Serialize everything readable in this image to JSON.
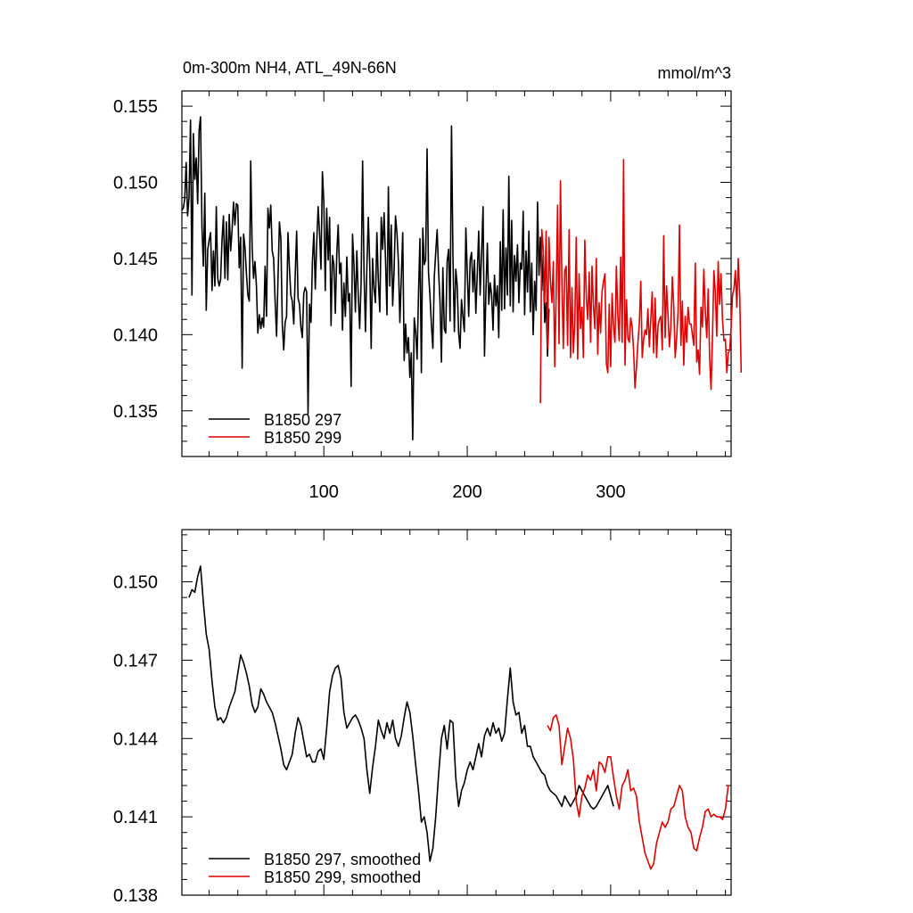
{
  "figure": {
    "title_left": "0m-300m NH4, ATL_49N-66N",
    "title_right": "mmol/m^3"
  },
  "chart_data": [
    {
      "type": "line",
      "name": "raw",
      "xlim": [
        1,
        384
      ],
      "ylim": [
        0.132,
        0.156
      ],
      "yticks": [
        0.135,
        0.14,
        0.145,
        0.15,
        0.155
      ],
      "ytick_labels": [
        "0.135",
        "0.140",
        "0.145",
        "0.150",
        "0.155"
      ],
      "xticks": [
        100,
        200,
        300
      ],
      "xtick_labels": [
        "100",
        "200",
        "300"
      ],
      "legend_position": "bottom-left",
      "series": [
        {
          "name": "B1850 297",
          "color": "#000000",
          "x_start": 1,
          "values": [
            0.1482,
            0.1483,
            0.1489,
            0.1513,
            0.1478,
            0.149,
            0.1541,
            0.1426,
            0.1532,
            0.1502,
            0.1516,
            0.1486,
            0.1534,
            0.1543,
            0.1471,
            0.1445,
            0.1493,
            0.1416,
            0.1456,
            0.1462,
            0.1467,
            0.1429,
            0.1455,
            0.1432,
            0.1484,
            0.1437,
            0.1432,
            0.1436,
            0.1462,
            0.1478,
            0.1437,
            0.1474,
            0.1436,
            0.1479,
            0.1455,
            0.1469,
            0.1487,
            0.1472,
            0.1486,
            0.1485,
            0.1444,
            0.1464,
            0.1378,
            0.1466,
            0.1457,
            0.144,
            0.1426,
            0.1422,
            0.1514,
            0.1457,
            0.1437,
            0.1448,
            0.1432,
            0.1401,
            0.1413,
            0.1404,
            0.1411,
            0.1405,
            0.1445,
            0.1412,
            0.1483,
            0.147,
            0.1485,
            0.1455,
            0.145,
            0.1423,
            0.1399,
            0.1437,
            0.1474,
            0.1463,
            0.1407,
            0.139,
            0.1408,
            0.1412,
            0.1467,
            0.1444,
            0.1426,
            0.1422,
            0.1407,
            0.1439,
            0.1468,
            0.1424,
            0.142,
            0.1405,
            0.1398,
            0.1427,
            0.1431,
            0.1428,
            0.1348,
            0.142,
            0.1408,
            0.1448,
            0.1467,
            0.143,
            0.146,
            0.1484,
            0.1467,
            0.1443,
            0.1507,
            0.1487,
            0.1429,
            0.1483,
            0.1449,
            0.1477,
            0.1406,
            0.1452,
            0.1446,
            0.1414,
            0.1453,
            0.1472,
            0.144,
            0.1447,
            0.1403,
            0.1434,
            0.1412,
            0.1451,
            0.1422,
            0.1427,
            0.1366,
            0.1466,
            0.1446,
            0.1415,
            0.1455,
            0.1426,
            0.1404,
            0.1434,
            0.1514,
            0.144,
            0.1402,
            0.1445,
            0.1477,
            0.1446,
            0.1391,
            0.145,
            0.143,
            0.1421,
            0.1467,
            0.1436,
            0.1415,
            0.1477,
            0.1456,
            0.148,
            0.1449,
            0.1413,
            0.1497,
            0.1432,
            0.1472,
            0.1419,
            0.1442,
            0.1478,
            0.1466,
            0.1447,
            0.1408,
            0.1438,
            0.1467,
            0.1383,
            0.1407,
            0.1388,
            0.1398,
            0.1372,
            0.1388,
            0.1331,
            0.1411,
            0.1402,
            0.1384,
            0.1427,
            0.1463,
            0.1375,
            0.147,
            0.1446,
            0.1449,
            0.1522,
            0.1441,
            0.1426,
            0.1406,
            0.1391,
            0.1438,
            0.1454,
            0.1469,
            0.1442,
            0.1422,
            0.1382,
            0.1444,
            0.1404,
            0.1401,
            0.1448,
            0.1456,
            0.1409,
            0.1537,
            0.1452,
            0.1402,
            0.1443,
            0.1432,
            0.1401,
            0.1391,
            0.1423,
            0.1412,
            0.1402,
            0.147,
            0.1441,
            0.1412,
            0.1449,
            0.1454,
            0.1428,
            0.1449,
            0.1414,
            0.144,
            0.1468,
            0.1426,
            0.1453,
            0.1484,
            0.1386,
            0.1428,
            0.146,
            0.142,
            0.1434,
            0.1426,
            0.1403,
            0.1439,
            0.1419,
            0.1432,
            0.1398,
            0.1461,
            0.1416,
            0.1482,
            0.1417,
            0.1457,
            0.1426,
            0.1504,
            0.1419,
            0.1475,
            0.1415,
            0.1452,
            0.1435,
            0.1459,
            0.1421,
            0.1447,
            0.1443,
            0.1481,
            0.1413,
            0.1455,
            0.1428,
            0.1468,
            0.1415,
            0.1447,
            0.14,
            0.1435,
            0.1416,
            0.1487,
            0.1439,
            0.1464,
            0.1429,
            0.1452,
            0.1408,
            0.1421,
            0.1386,
            0.1417
          ]
        },
        {
          "name": "B1850 299",
          "color": "#e00000",
          "x_start": 251,
          "values": [
            0.1355,
            0.1469,
            0.1456,
            0.1421,
            0.1468,
            0.1391,
            0.1464,
            0.1436,
            0.1421,
            0.1448,
            0.1379,
            0.1427,
            0.1485,
            0.1394,
            0.1501,
            0.1435,
            0.1391,
            0.1442,
            0.1445,
            0.1393,
            0.1469,
            0.1385,
            0.1431,
            0.1388,
            0.1408,
            0.1464,
            0.1384,
            0.144,
            0.1404,
            0.1418,
            0.1385,
            0.1462,
            0.1424,
            0.141,
            0.1441,
            0.1395,
            0.1445,
            0.1419,
            0.1404,
            0.145,
            0.1387,
            0.1421,
            0.1401,
            0.1428,
            0.1435,
            0.144,
            0.1381,
            0.1375,
            0.142,
            0.1379,
            0.1427,
            0.1406,
            0.1395,
            0.1445,
            0.1413,
            0.1396,
            0.1451,
            0.1395,
            0.1515,
            0.138,
            0.1423,
            0.1398,
            0.1395,
            0.1411,
            0.1405,
            0.139,
            0.1365,
            0.1378,
            0.1395,
            0.1408,
            0.1435,
            0.1385,
            0.1397,
            0.1403,
            0.14,
            0.1417,
            0.1392,
            0.141,
            0.1428,
            0.1388,
            0.1424,
            0.1385,
            0.1406,
            0.141,
            0.1412,
            0.139,
            0.1465,
            0.1398,
            0.1432,
            0.1413,
            0.1392,
            0.1405,
            0.1438,
            0.1418,
            0.1385,
            0.1398,
            0.1415,
            0.1472,
            0.1393,
            0.1422,
            0.138,
            0.1412,
            0.1395,
            0.1418,
            0.1407,
            0.1407,
            0.14,
            0.1393,
            0.1447,
            0.1382,
            0.139,
            0.1374,
            0.1418,
            0.1405,
            0.1443,
            0.1416,
            0.1398,
            0.143,
            0.1385,
            0.1364,
            0.1398,
            0.1442,
            0.1428,
            0.1399,
            0.1448,
            0.142,
            0.144,
            0.141,
            0.1396,
            0.1397,
            0.1375,
            0.1388,
            0.139,
            0.1405,
            0.1426,
            0.143,
            0.1442,
            0.1418,
            0.145,
            0.1425,
            0.1375
          ]
        }
      ]
    },
    {
      "type": "line",
      "name": "smoothed",
      "xlim": [
        1,
        384
      ],
      "ylim": [
        0.138,
        0.152
      ],
      "yticks": [
        0.138,
        0.141,
        0.144,
        0.147,
        0.15
      ],
      "ytick_labels": [
        "0.138",
        "0.141",
        "0.144",
        "0.147",
        "0.150"
      ],
      "xticks": [
        100,
        200,
        300
      ],
      "xtick_labels": [],
      "legend_position": "bottom-left",
      "series": [
        {
          "name": "B1850 297, smoothed",
          "color": "#000000",
          "x": [
            6,
            8,
            10,
            12,
            14,
            16,
            18,
            20,
            22,
            24,
            26,
            28,
            30,
            32,
            34,
            36,
            38,
            40,
            42,
            44,
            46,
            48,
            50,
            52,
            54,
            56,
            58,
            60,
            62,
            64,
            66,
            68,
            70,
            72,
            74,
            76,
            78,
            80,
            82,
            84,
            86,
            88,
            90,
            92,
            94,
            96,
            98,
            100,
            102,
            104,
            106,
            108,
            110,
            112,
            114,
            116,
            118,
            120,
            122,
            124,
            126,
            128,
            130,
            132,
            134,
            136,
            138,
            140,
            142,
            144,
            146,
            148,
            150,
            152,
            154,
            156,
            158,
            160,
            162,
            164,
            166,
            168,
            170,
            172,
            174,
            176,
            178,
            180,
            182,
            184,
            186,
            188,
            190,
            192,
            194,
            196,
            198,
            200,
            202,
            204,
            206,
            208,
            210,
            212,
            214,
            216,
            218,
            220,
            222,
            224,
            226,
            228,
            230,
            232,
            234,
            236,
            238,
            240,
            242,
            244,
            246,
            248,
            250,
            252,
            254,
            256,
            258,
            260,
            262,
            264,
            266,
            268,
            270,
            272,
            274,
            276,
            278,
            280,
            282,
            284,
            286,
            288,
            290,
            292,
            294,
            296,
            298,
            300,
            302
          ],
          "values": [
            0.1494,
            0.1497,
            0.1496,
            0.1502,
            0.1506,
            0.1492,
            0.148,
            0.1474,
            0.1462,
            0.1452,
            0.1447,
            0.1448,
            0.1446,
            0.1448,
            0.1452,
            0.1455,
            0.1458,
            0.1465,
            0.1472,
            0.1469,
            0.1465,
            0.146,
            0.1453,
            0.145,
            0.1452,
            0.1459,
            0.1457,
            0.1454,
            0.1452,
            0.145,
            0.1446,
            0.1441,
            0.1436,
            0.143,
            0.1428,
            0.1431,
            0.1434,
            0.1442,
            0.1448,
            0.1445,
            0.1439,
            0.1433,
            0.1434,
            0.1431,
            0.1431,
            0.1435,
            0.1436,
            0.1432,
            0.1444,
            0.1458,
            0.1464,
            0.1467,
            0.1468,
            0.1463,
            0.145,
            0.1444,
            0.1446,
            0.1448,
            0.1449,
            0.1447,
            0.1444,
            0.144,
            0.1428,
            0.1419,
            0.1429,
            0.1437,
            0.1447,
            0.1443,
            0.144,
            0.1446,
            0.1442,
            0.1447,
            0.144,
            0.1437,
            0.1441,
            0.1448,
            0.1454,
            0.145,
            0.1441,
            0.143,
            0.142,
            0.1408,
            0.141,
            0.1404,
            0.1393,
            0.1398,
            0.141,
            0.1426,
            0.144,
            0.1445,
            0.1436,
            0.1447,
            0.1446,
            0.1425,
            0.1414,
            0.142,
            0.1423,
            0.1428,
            0.1431,
            0.1428,
            0.1433,
            0.1438,
            0.1433,
            0.1441,
            0.1444,
            0.1441,
            0.1446,
            0.1442,
            0.1444,
            0.1439,
            0.1442,
            0.1455,
            0.1467,
            0.1454,
            0.1449,
            0.145,
            0.1442,
            0.1445,
            0.1437,
            0.1437,
            0.1433,
            0.1431,
            0.1429,
            0.1427,
            0.1426,
            0.1422,
            0.142,
            0.1419,
            0.1418,
            0.1416,
            0.1414,
            0.1418,
            0.1416,
            0.1414,
            0.1416,
            0.1418,
            0.1422,
            0.142,
            0.1418,
            0.1416,
            0.1414,
            0.1413,
            0.1414,
            0.1416,
            0.1418,
            0.142,
            0.1422,
            0.1418,
            0.1414
          ]
        },
        {
          "name": "B1850 299, smoothed",
          "color": "#e00000",
          "x": [
            256,
            258,
            260,
            262,
            264,
            266,
            268,
            270,
            272,
            274,
            276,
            278,
            280,
            282,
            284,
            286,
            288,
            290,
            292,
            294,
            296,
            298,
            300,
            302,
            304,
            306,
            308,
            310,
            312,
            314,
            316,
            318,
            320,
            322,
            324,
            326,
            328,
            330,
            332,
            334,
            336,
            338,
            340,
            342,
            344,
            346,
            348,
            350,
            352,
            354,
            356,
            358,
            360,
            362,
            364,
            366,
            368,
            370,
            372,
            374,
            376,
            378,
            380,
            382
          ],
          "values": [
            0.1445,
            0.1443,
            0.1448,
            0.1449,
            0.1445,
            0.143,
            0.1437,
            0.1444,
            0.144,
            0.1432,
            0.1416,
            0.141,
            0.1418,
            0.1421,
            0.1426,
            0.1424,
            0.1428,
            0.142,
            0.1431,
            0.143,
            0.1427,
            0.1433,
            0.1433,
            0.1425,
            0.1418,
            0.1413,
            0.1422,
            0.1424,
            0.1428,
            0.142,
            0.1421,
            0.1418,
            0.1408,
            0.1402,
            0.1396,
            0.1393,
            0.139,
            0.1392,
            0.14,
            0.1404,
            0.1408,
            0.1406,
            0.1408,
            0.1413,
            0.1414,
            0.1418,
            0.1422,
            0.142,
            0.141,
            0.1406,
            0.1404,
            0.1398,
            0.1397,
            0.1402,
            0.1406,
            0.1412,
            0.1413,
            0.141,
            0.1411,
            0.141,
            0.141,
            0.1409,
            0.1413,
            0.1422
          ]
        }
      ]
    }
  ]
}
